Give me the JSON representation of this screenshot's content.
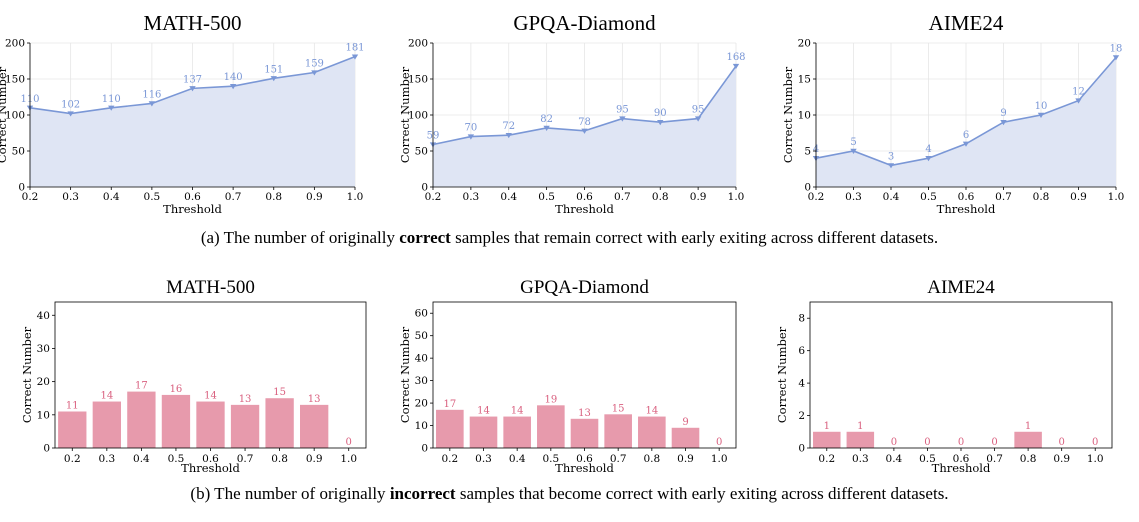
{
  "colors": {
    "line": "#7a97d6",
    "fill": "#dfe5f4",
    "bar": "#e79aac",
    "bar_label": "#d9607f",
    "grid": "#e6e6e6",
    "axis": "#000000"
  },
  "captions": {
    "a": {
      "prefix": "(a) The number of originally ",
      "bold": "correct",
      "suffix": " samples that remain correct with early exiting across different datasets."
    },
    "b": {
      "prefix": "(b) The number of originally ",
      "bold": "incorrect",
      "suffix": " samples that become correct with early exiting across different datasets."
    }
  },
  "chart_data": [
    {
      "type": "area",
      "title": "MATH-500",
      "xlabel": "Threshold",
      "ylabel": "Correct Number",
      "x": [
        0.2,
        0.3,
        0.4,
        0.5,
        0.6,
        0.7,
        0.8,
        0.9,
        1.0
      ],
      "values": [
        110,
        102,
        110,
        116,
        137,
        140,
        151,
        159,
        181
      ],
      "data_labels": [
        "110",
        "102",
        "110",
        "116",
        "137",
        "140",
        "151",
        "159",
        "181"
      ],
      "ylim": [
        0,
        200
      ],
      "yticks": [
        "0",
        "50",
        "100",
        "150",
        "200"
      ],
      "xticks": [
        "0.2",
        "0.3",
        "0.4",
        "0.5",
        "0.6",
        "0.7",
        "0.8",
        "0.9",
        "1.0"
      ],
      "grid": true
    },
    {
      "type": "area",
      "title": "GPQA-Diamond",
      "xlabel": "Threshold",
      "ylabel": "Correct Number",
      "x": [
        0.2,
        0.3,
        0.4,
        0.5,
        0.6,
        0.7,
        0.8,
        0.9,
        1.0
      ],
      "values": [
        59,
        70,
        72,
        82,
        78,
        95,
        90,
        95,
        168
      ],
      "data_labels": [
        "59",
        "70",
        "72",
        "82",
        "78",
        "95",
        "90",
        "95",
        "168"
      ],
      "ylim": [
        0,
        200
      ],
      "yticks": [
        "0",
        "50",
        "100",
        "150",
        "200"
      ],
      "xticks": [
        "0.2",
        "0.3",
        "0.4",
        "0.5",
        "0.6",
        "0.7",
        "0.8",
        "0.9",
        "1.0"
      ],
      "grid": true
    },
    {
      "type": "area",
      "title": "AIME24",
      "xlabel": "Threshold",
      "ylabel": "Correct Number",
      "x": [
        0.2,
        0.3,
        0.4,
        0.5,
        0.6,
        0.7,
        0.8,
        0.9,
        1.0
      ],
      "values": [
        4,
        5,
        3,
        4,
        6,
        9,
        10,
        12,
        18
      ],
      "data_labels": [
        "4",
        "5",
        "3",
        "4",
        "6",
        "9",
        "10",
        "12",
        "18"
      ],
      "ylim": [
        0,
        20
      ],
      "yticks": [
        "0",
        "5",
        "10",
        "15",
        "20"
      ],
      "xticks": [
        "0.2",
        "0.3",
        "0.4",
        "0.5",
        "0.6",
        "0.7",
        "0.8",
        "0.9",
        "1.0"
      ],
      "grid": true
    },
    {
      "type": "bar",
      "title": "MATH-500",
      "xlabel": "Threshold",
      "ylabel": "Correct Number",
      "categories": [
        "0.2",
        "0.3",
        "0.4",
        "0.5",
        "0.6",
        "0.7",
        "0.8",
        "0.9",
        "1.0"
      ],
      "values": [
        11,
        14,
        17,
        16,
        14,
        13,
        15,
        13,
        0
      ],
      "data_labels": [
        "11",
        "14",
        "17",
        "16",
        "14",
        "13",
        "15",
        "13",
        "0"
      ],
      "ylim": [
        0,
        44
      ],
      "yticks": [
        "0",
        "10",
        "20",
        "30",
        "40"
      ],
      "grid": false
    },
    {
      "type": "bar",
      "title": "GPQA-Diamond",
      "xlabel": "Threshold",
      "ylabel": "Correct Number",
      "categories": [
        "0.2",
        "0.3",
        "0.4",
        "0.5",
        "0.6",
        "0.7",
        "0.8",
        "0.9",
        "1.0"
      ],
      "values": [
        17,
        14,
        14,
        19,
        13,
        15,
        14,
        9,
        0
      ],
      "data_labels": [
        "17",
        "14",
        "14",
        "19",
        "13",
        "15",
        "14",
        "9",
        "0"
      ],
      "ylim": [
        0,
        65
      ],
      "yticks": [
        "0",
        "10",
        "20",
        "30",
        "40",
        "50",
        "60"
      ],
      "grid": false
    },
    {
      "type": "bar",
      "title": "AIME24",
      "xlabel": "Threshold",
      "ylabel": "Correct Number",
      "categories": [
        "0.2",
        "0.3",
        "0.4",
        "0.5",
        "0.6",
        "0.7",
        "0.8",
        "0.9",
        "1.0"
      ],
      "values": [
        1,
        1,
        0,
        0,
        0,
        0,
        1,
        0,
        0
      ],
      "data_labels": [
        "1",
        "1",
        "0",
        "0",
        "0",
        "0",
        "1",
        "0",
        "0"
      ],
      "ylim": [
        0,
        9
      ],
      "yticks": [
        "0",
        "2",
        "4",
        "6",
        "8"
      ],
      "grid": false
    }
  ]
}
